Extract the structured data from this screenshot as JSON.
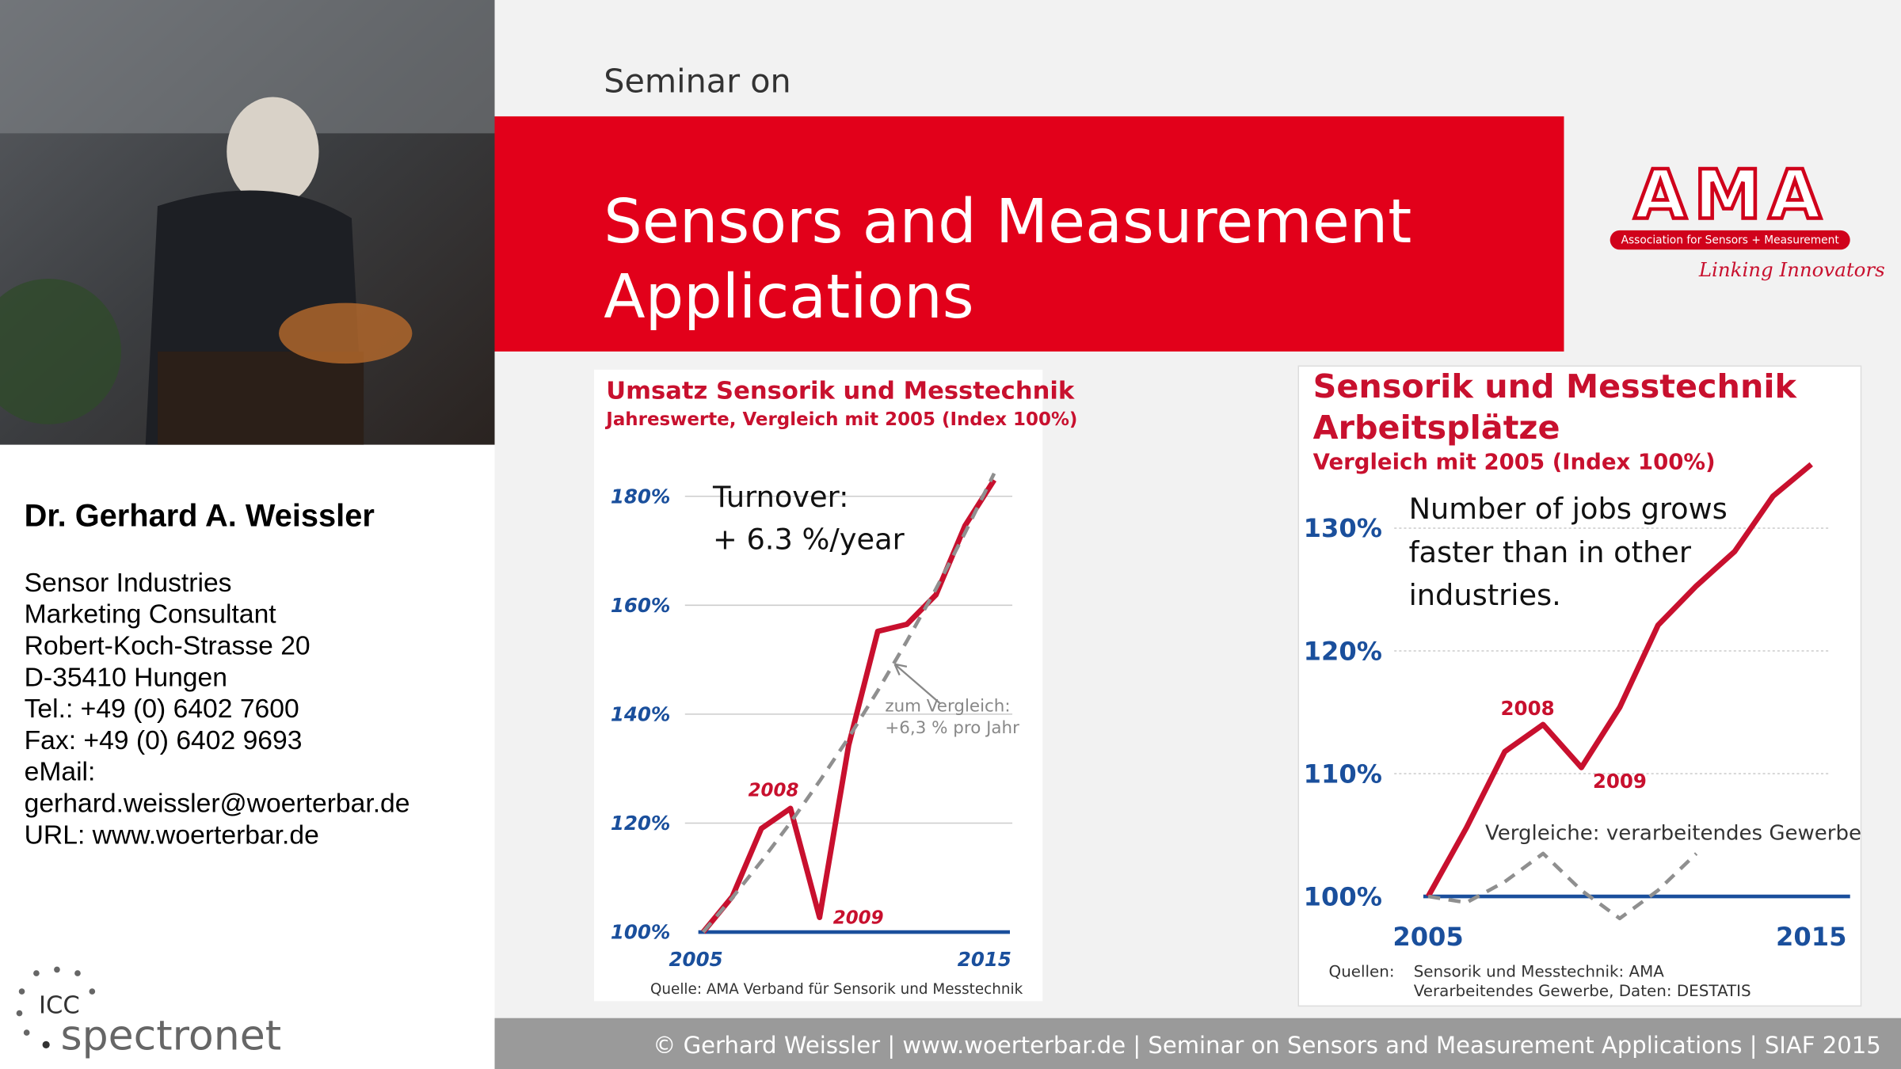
{
  "speaker": {
    "name": "Dr. Gerhard A. Weissler",
    "lines": [
      "Sensor Industries",
      "Marketing Consultant",
      "Robert-Koch-Strasse 20",
      "D-35410 Hungen",
      "Tel.: +49 (0) 6402 7600",
      "Fax: +49 (0) 6402 9693",
      "eMail:",
      "gerhard.weissler@woerterbar.de",
      "URL: www.woerterbar.de"
    ]
  },
  "logo_left": {
    "top": "ICC",
    "bottom": "spectronet"
  },
  "slide": {
    "kicker": "Seminar on",
    "title_lines": [
      "Sensors and Measurement",
      "Applications"
    ],
    "logo": {
      "mark": "AMA",
      "tagline": "Association for Sensors + Measurement",
      "slogan": "Linking Innovators"
    }
  },
  "chart_data": [
    {
      "type": "line",
      "title": [
        "Umsatz Sensorik und Messtechnik"
      ],
      "subtitle": "Jahreswerte, Vergleich mit 2005 (Index 100%)",
      "x": [
        2005,
        2006,
        2007,
        2008,
        2009,
        2010,
        2011,
        2012,
        2013,
        2014,
        2015
      ],
      "xlim": [
        2005,
        2015
      ],
      "xticks": [
        2005,
        2015
      ],
      "ylim": [
        100,
        185
      ],
      "yticks": [
        {
          "value": 100,
          "label": "100%"
        },
        {
          "value": 120,
          "label": "120%"
        },
        {
          "value": 140,
          "label": "140%"
        },
        {
          "value": 160,
          "label": "160%"
        },
        {
          "value": 180,
          "label": "180%"
        }
      ],
      "grid": true,
      "series": [
        {
          "color": "#c8102e",
          "dashed": false,
          "values": [
            100,
            106.5,
            119,
            122.7,
            102.7,
            134.3,
            155.2,
            156.5,
            161.9,
            174.6,
            183
          ]
        },
        {
          "color": "#8f8f8f",
          "dashed": true,
          "values": [
            100,
            106.3,
            113,
            120.1,
            127.7,
            135.7,
            144.3,
            153.4,
            163,
            173.3,
            184.2
          ]
        }
      ],
      "annotations": [
        "Turnover:",
        "+ 6.3 %/year",
        "2008",
        "2009",
        "zum Vergleich:",
        "+6,3 % pro Jahr",
        "Quelle: AMA Verband für Sensorik und Messtechnik"
      ]
    },
    {
      "type": "line",
      "title": [
        "Sensorik und Messtechnik",
        "Arbeitsplätze"
      ],
      "subtitle": "Vergleich mit 2005 (Index 100%)",
      "x": [
        2005,
        2006,
        2007,
        2008,
        2009,
        2010,
        2011,
        2012,
        2013,
        2014,
        2015
      ],
      "xlim": [
        2005,
        2015
      ],
      "xticks": [
        2005,
        2015
      ],
      "ylim": [
        97,
        136
      ],
      "yticks": [
        {
          "value": 100,
          "label": "100%"
        },
        {
          "value": 110,
          "label": "110%"
        },
        {
          "value": 120,
          "label": "120%"
        },
        {
          "value": 130,
          "label": "130%"
        }
      ],
      "grid": true,
      "series": [
        {
          "color": "#c8102e",
          "dashed": false,
          "values": [
            100,
            105.6,
            111.8,
            114,
            110.5,
            115.4,
            122.1,
            125.3,
            128.1,
            132.6,
            135.2
          ]
        },
        {
          "color": "#8f8f8f",
          "dashed": true,
          "values": [
            100,
            99.5,
            101.2,
            103.5,
            100.5,
            98.2,
            100.5,
            103.5,
            null,
            null,
            null
          ]
        }
      ],
      "annotations": [
        "Number of jobs grows",
        "faster than in other",
        "industries.",
        "2008",
        "2009",
        "Vergleiche: verarbeitendes Gewerbe",
        "Quellen:",
        "Sensorik und Messtechnik: AMA",
        "Verarbeitendes Gewerbe, Daten: DESTATIS"
      ]
    }
  ],
  "footer": "© Gerhard Weissler | www.woerterbar.de | Seminar on Sensors and Measurement Applications | SIAF 2015"
}
